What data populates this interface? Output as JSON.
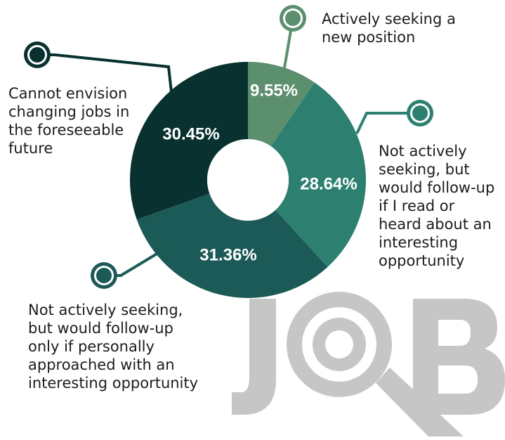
{
  "chart_data": {
    "type": "pie",
    "style": "donut",
    "slices": [
      {
        "label": "Actively seeking a\nnew position",
        "value": 9.55,
        "value_label": "9.55%",
        "color": "#5b8f6d"
      },
      {
        "label": "Not actively\nseeking, but\nwould follow-up\nif I read or\nheard about an\ninteresting\nopportunity",
        "value": 28.64,
        "value_label": "28.64%",
        "color": "#2d8070"
      },
      {
        "label": "Not actively seeking,\nbut would follow-up\nonly if personally\napproached with an\ninteresting opportunity",
        "value": 31.36,
        "value_label": "31.36%",
        "color": "#1c5a57"
      },
      {
        "label": "Cannot envision\nchanging jobs in\nthe foreseeable\nfuture",
        "value": 30.45,
        "value_label": "30.45%",
        "color": "#08312f"
      }
    ]
  },
  "watermark": {
    "text": "JOB",
    "color": "#c6c6c6"
  }
}
